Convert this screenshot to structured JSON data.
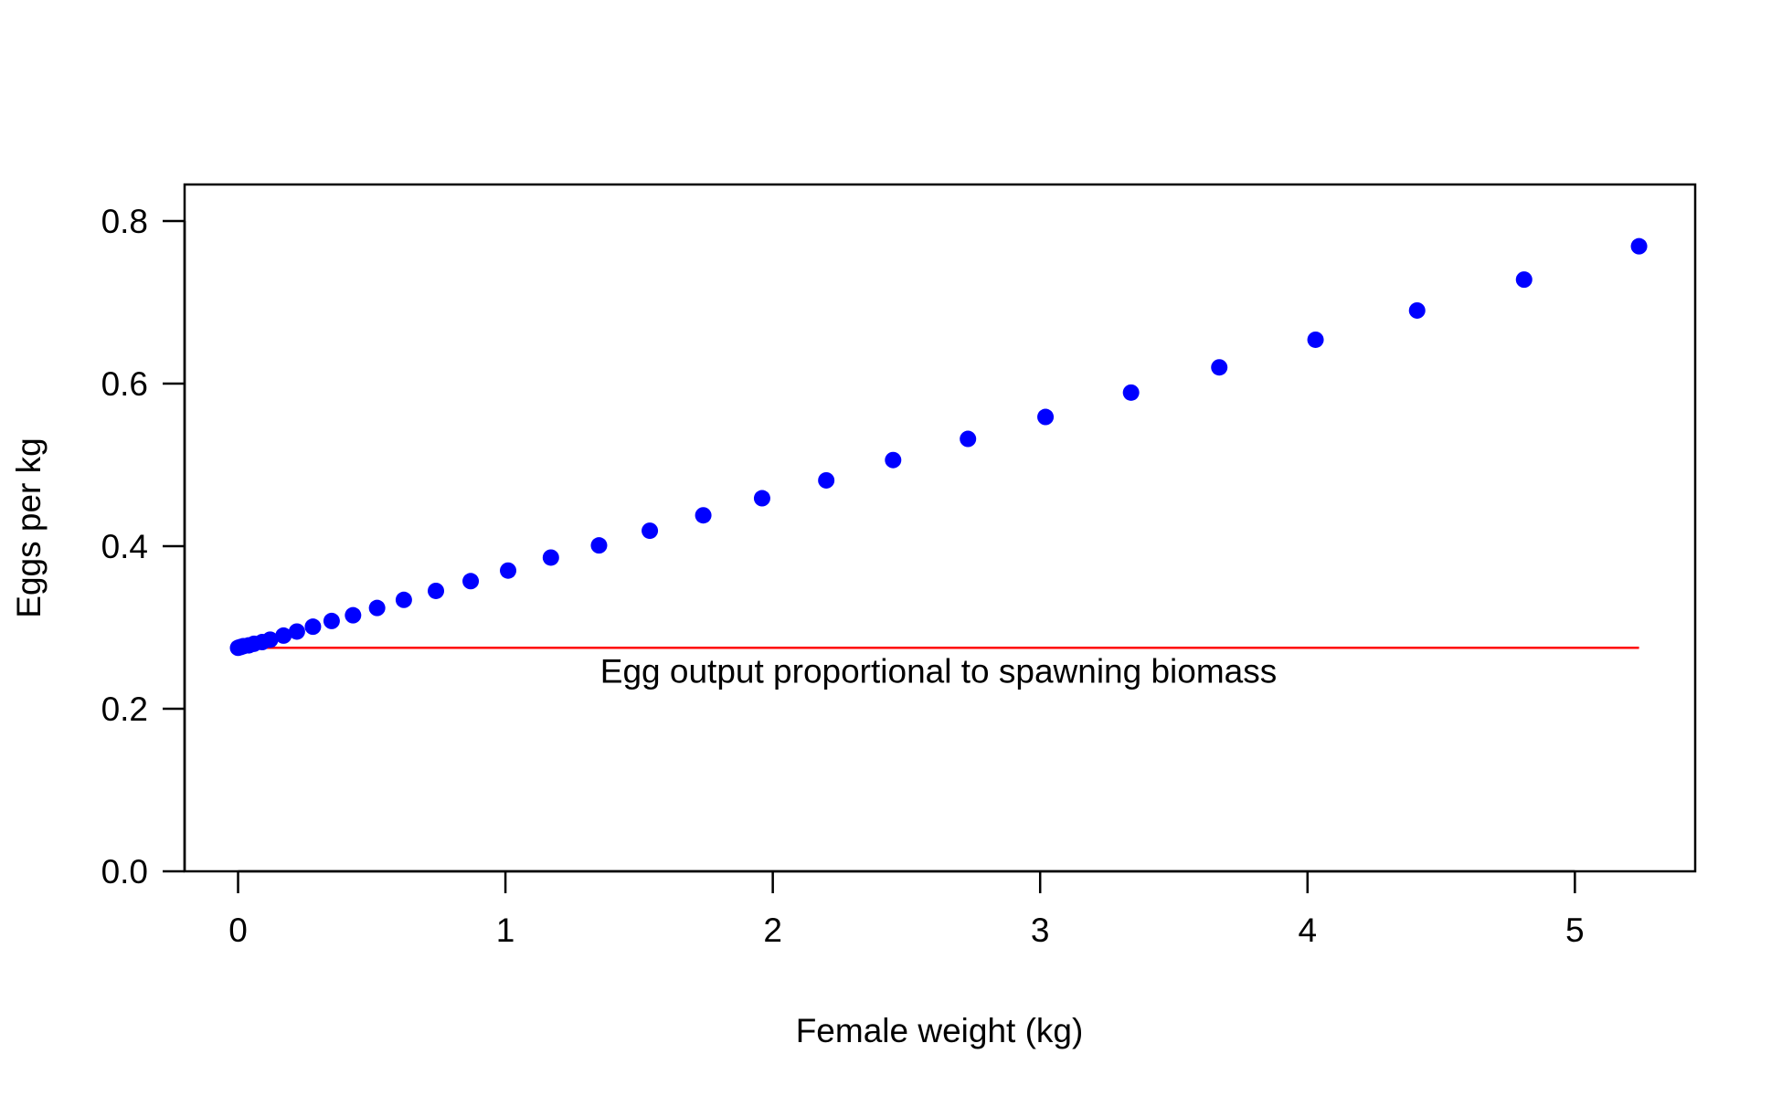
{
  "chart_data": {
    "type": "scatter",
    "title": "",
    "xlabel": "Female weight (kg)",
    "ylabel": "Eggs per kg",
    "xlim": [
      -0.2,
      5.45
    ],
    "ylim": [
      0.0,
      0.845
    ],
    "x_ticks": [
      0,
      1,
      2,
      3,
      4,
      5
    ],
    "x_tick_labels": [
      "0",
      "1",
      "2",
      "3",
      "4",
      "5"
    ],
    "y_ticks": [
      0.0,
      0.2,
      0.4,
      0.6,
      0.8
    ],
    "y_tick_labels": [
      "0.0",
      "0.2",
      "0.4",
      "0.6",
      "0.8"
    ],
    "grid": false,
    "legend": "none",
    "colors": {
      "points": "#0000ff",
      "reference_line": "#ff0000",
      "axes": "#000000"
    },
    "series": [
      {
        "marker": "filled-circle",
        "x": [
          0.0,
          0.01,
          0.02,
          0.04,
          0.06,
          0.09,
          0.12,
          0.17,
          0.22,
          0.28,
          0.35,
          0.43,
          0.52,
          0.62,
          0.74,
          0.87,
          1.01,
          1.17,
          1.35,
          1.54,
          1.74,
          1.96,
          2.2,
          2.45,
          2.73,
          3.02,
          3.34,
          3.67,
          4.03,
          4.41,
          4.81,
          5.24
        ],
        "y": [
          0.275,
          0.276,
          0.277,
          0.278,
          0.28,
          0.282,
          0.285,
          0.29,
          0.295,
          0.301,
          0.308,
          0.315,
          0.324,
          0.334,
          0.345,
          0.357,
          0.37,
          0.386,
          0.401,
          0.419,
          0.438,
          0.459,
          0.481,
          0.506,
          0.532,
          0.559,
          0.589,
          0.62,
          0.654,
          0.69,
          0.728,
          0.769
        ]
      }
    ],
    "reference_line": {
      "x": [
        0.0,
        5.24
      ],
      "y": [
        0.275,
        0.275
      ]
    },
    "annotations": [
      {
        "text": "Egg output proportional to spawning biomass",
        "x": 2.62,
        "y": 0.232
      }
    ]
  }
}
